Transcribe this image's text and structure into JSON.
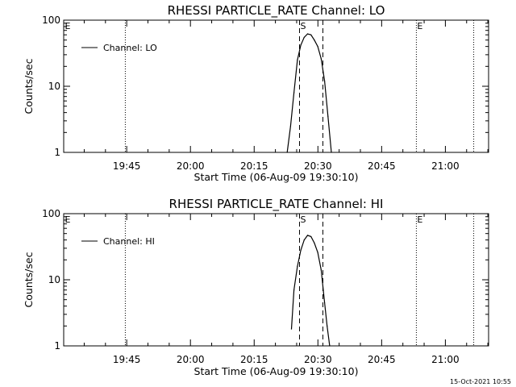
{
  "timestamp": "15-Oct-2021 10:55",
  "chart_data": [
    {
      "type": "line",
      "title": "RHESSI PARTICLE_RATE Channel: LO",
      "ylabel": "Counts/sec",
      "xlabel": "Start Time (06-Aug-09 19:30:10)",
      "x_unit": "minutes from 19:30:10",
      "xlim": [
        0,
        100
      ],
      "ylim": [
        1,
        100
      ],
      "yscale": "log",
      "yticks": [
        1,
        10,
        100
      ],
      "ytick_labels": [
        "1",
        "10",
        "100"
      ],
      "xticks": [
        14.83,
        29.83,
        44.83,
        59.83,
        74.83,
        89.83
      ],
      "xtick_labels": [
        "19:45",
        "20:00",
        "20:15",
        "20:30",
        "20:45",
        "21:00"
      ],
      "legend": {
        "label": "Channel: LO",
        "position": "top-left"
      },
      "markers": [
        {
          "label": "E",
          "x": 0,
          "style": "dotted"
        },
        {
          "label": "",
          "x": 14.5,
          "style": "dotted"
        },
        {
          "label": "S",
          "x": 55.5,
          "style": "dashed"
        },
        {
          "label": "",
          "x": 61.0,
          "style": "dashed"
        },
        {
          "label": "E",
          "x": 83.0,
          "style": "dotted"
        },
        {
          "label": "",
          "x": 96.5,
          "style": "dotted"
        }
      ],
      "series": [
        {
          "name": "Channel: LO",
          "x": [
            52.6,
            53.4,
            54.2,
            55.0,
            55.8,
            56.6,
            57.4,
            58.2,
            59.0,
            59.8,
            60.6,
            61.4,
            62.2,
            63.0
          ],
          "y": [
            1.0,
            2.5,
            8.0,
            25.0,
            42.0,
            55.0,
            62.0,
            60.0,
            50.0,
            40.0,
            26.0,
            12.0,
            3.5,
            1.0
          ]
        }
      ]
    },
    {
      "type": "line",
      "title": "RHESSI PARTICLE_RATE Channel: HI",
      "ylabel": "Counts/sec",
      "xlabel": "Start Time (06-Aug-09 19:30:10)",
      "x_unit": "minutes from 19:30:10",
      "xlim": [
        0,
        100
      ],
      "ylim": [
        1,
        100
      ],
      "yscale": "log",
      "yticks": [
        1,
        10,
        100
      ],
      "ytick_labels": [
        "1",
        "10",
        "100"
      ],
      "xticks": [
        14.83,
        29.83,
        44.83,
        59.83,
        74.83,
        89.83
      ],
      "xtick_labels": [
        "19:45",
        "20:00",
        "20:15",
        "20:30",
        "20:45",
        "21:00"
      ],
      "legend": {
        "label": "Channel: HI",
        "position": "top-left"
      },
      "markers": [
        {
          "label": "E",
          "x": 0,
          "style": "dotted"
        },
        {
          "label": "",
          "x": 14.5,
          "style": "dotted"
        },
        {
          "label": "S",
          "x": 55.5,
          "style": "dashed"
        },
        {
          "label": "",
          "x": 61.0,
          "style": "dashed"
        },
        {
          "label": "E",
          "x": 83.0,
          "style": "dotted"
        },
        {
          "label": "",
          "x": 96.5,
          "style": "dotted"
        }
      ],
      "series": [
        {
          "name": "Channel: HI",
          "x": [
            53.6,
            54.2,
            55.0,
            55.8,
            56.6,
            57.4,
            58.2,
            59.0,
            59.8,
            60.6,
            61.4,
            62.0,
            62.6
          ],
          "y": [
            1.8,
            7.0,
            16.0,
            28.0,
            40.0,
            47.0,
            45.0,
            36.0,
            26.0,
            14.0,
            4.5,
            2.0,
            1.0
          ]
        }
      ]
    }
  ]
}
